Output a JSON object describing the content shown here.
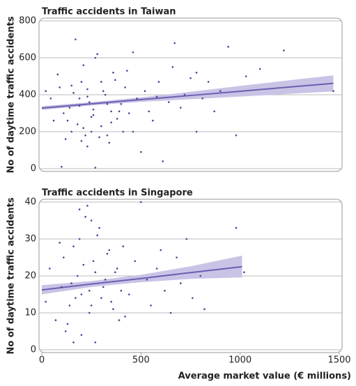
{
  "chart_data": [
    {
      "type": "scatter",
      "title": "Traffic accidents in Taiwan",
      "y_label": "No of daytime traffic accidents",
      "xlim": [
        0,
        1500
      ],
      "ylim": [
        0,
        800
      ],
      "yticks": [
        0,
        200,
        400,
        600,
        800
      ],
      "grid": true,
      "color": "#4b4290",
      "fit_color": "#6a5fb0",
      "band_color": "#c9c4e6",
      "x": [
        20,
        45,
        80,
        110,
        130,
        150,
        170,
        190,
        210,
        230,
        250,
        270,
        290,
        310,
        330,
        350,
        370,
        390,
        410,
        430,
        120,
        140,
        160,
        180,
        200,
        220,
        240,
        260,
        280,
        300,
        320,
        340,
        360,
        380,
        400,
        420,
        440,
        460,
        480,
        500,
        520,
        540,
        560,
        590,
        610,
        640,
        660,
        700,
        720,
        750,
        780,
        810,
        840,
        870,
        900,
        940,
        980,
        1030,
        1100,
        1220,
        60,
        90,
        200,
        210,
        230,
        250,
        270,
        260,
        150,
        100,
        300,
        330,
        190,
        230,
        350,
        1470,
        780,
        460,
        580,
        670
      ],
      "values": [
        420,
        380,
        510,
        300,
        260,
        450,
        700,
        340,
        220,
        390,
        280,
        600,
        170,
        420,
        350,
        250,
        480,
        310,
        200,
        530,
        160,
        330,
        410,
        240,
        470,
        180,
        360,
        290,
        620,
        230,
        400,
        140,
        520,
        270,
        350,
        440,
        300,
        630,
        380,
        90,
        420,
        310,
        260,
        470,
        40,
        360,
        550,
        330,
        400,
        490,
        200,
        380,
        470,
        310,
        420,
        660,
        180,
        500,
        540,
        640,
        260,
        440,
        150,
        560,
        120,
        200,
        5,
        320,
        200,
        10,
        470,
        180,
        380,
        430,
        310,
        420,
        520,
        200,
        390,
        680
      ],
      "fit": {
        "x": [
          0,
          250,
          500,
          750,
          1000,
          1250,
          1470
        ],
        "y": [
          328,
          351,
          374,
          396,
          419,
          442,
          462
        ],
        "lower": [
          318,
          342,
          362,
          376,
          390,
          405,
          418
        ],
        "upper": [
          338,
          360,
          386,
          416,
          448,
          479,
          505
        ]
      }
    },
    {
      "type": "scatter",
      "title": "Traffic accidents in Singapore",
      "y_label": "No of daytime traffic accidents",
      "x_label": "Average market value (€ millions)",
      "xlim": [
        0,
        1500
      ],
      "ylim": [
        0,
        40
      ],
      "xticks": [
        0,
        500,
        1000,
        1500
      ],
      "yticks": [
        0,
        10,
        20,
        30,
        40
      ],
      "grid": true,
      "color": "#4b4290",
      "fit_color": "#6a5fb0",
      "band_color": "#c9c4e6",
      "x": [
        20,
        40,
        70,
        100,
        120,
        140,
        160,
        180,
        200,
        220,
        240,
        260,
        280,
        300,
        320,
        340,
        360,
        380,
        400,
        420,
        110,
        130,
        150,
        170,
        190,
        210,
        230,
        250,
        270,
        290,
        310,
        330,
        350,
        370,
        390,
        410,
        440,
        470,
        500,
        530,
        550,
        580,
        600,
        620,
        650,
        680,
        700,
        730,
        760,
        800,
        820,
        980,
        1020,
        90,
        160,
        200,
        240,
        270,
        190,
        250
      ],
      "values": [
        13,
        22,
        8,
        17,
        5,
        12,
        28,
        20,
        15,
        36,
        10,
        24,
        31,
        14,
        19,
        27,
        11,
        22,
        16,
        9,
        25,
        7,
        18,
        14,
        30,
        23,
        39,
        12,
        21,
        33,
        17,
        26,
        13,
        21,
        8,
        28,
        15,
        24,
        40,
        19,
        12,
        22,
        27,
        16,
        10,
        25,
        18,
        30,
        14,
        20,
        11,
        33,
        21,
        29,
        2,
        4,
        16,
        2,
        38,
        35
      ],
      "fit": {
        "x": [
          0,
          250,
          500,
          750,
          1010
        ],
        "y": [
          16.2,
          17.8,
          19.3,
          20.9,
          22.5
        ],
        "lower": [
          15.0,
          17.0,
          18.3,
          19.2,
          19.6
        ],
        "upper": [
          17.5,
          18.6,
          20.3,
          22.6,
          25.5
        ]
      }
    }
  ]
}
